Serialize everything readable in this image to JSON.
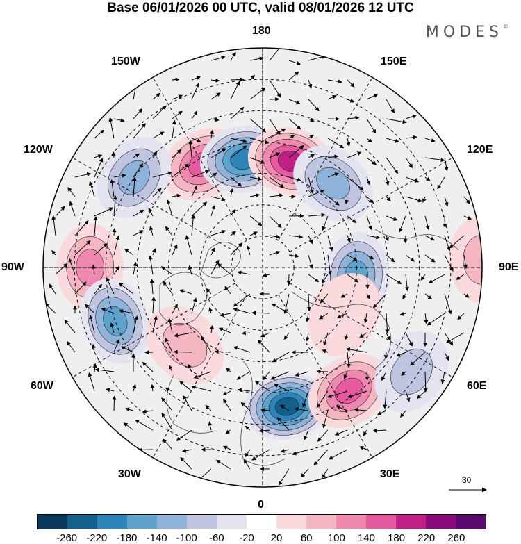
{
  "title": "Base 06/01/2026 00 UTC, valid 08/01/2026 12 UTC",
  "logo": "MODES",
  "logo_mark": "©",
  "longitude_labels": {
    "top": "180",
    "bottom": "0",
    "left": "90W",
    "right": "90E",
    "upper_left": "150W",
    "upper_right": "150E",
    "mid_upper_left": "120W",
    "mid_upper_right": "120E",
    "lower_left_60": "60W",
    "lower_right_60": "60E",
    "lower_left_30": "30W",
    "lower_right_30": "30E"
  },
  "reference_vector": {
    "value": "30"
  },
  "colorbar": {
    "ticks": [
      "-260",
      "-220",
      "-180",
      "-140",
      "-100",
      "-60",
      "-20",
      "20",
      "60",
      "100",
      "140",
      "180",
      "220",
      "260"
    ],
    "colors": [
      "#0b3a5c",
      "#14608c",
      "#2c84b8",
      "#5ea3cc",
      "#8fb2d8",
      "#bfc5e0",
      "#e4e3f0",
      "#ffffff",
      "#f9d9dc",
      "#f3b6c2",
      "#ef88ae",
      "#e65aa0",
      "#c02086",
      "#8a0a7e",
      "#5a0a6e"
    ]
  },
  "anomalies": [
    {
      "name": "high-150W",
      "lon": -150,
      "lat": 52,
      "value": 160
    },
    {
      "name": "low-170W",
      "lon": -170,
      "lat": 55,
      "value": -200
    },
    {
      "name": "high-165E",
      "lon": 165,
      "lat": 55,
      "value": 190
    },
    {
      "name": "low-140E",
      "lon": 140,
      "lat": 55,
      "value": -120
    },
    {
      "name": "low-125W",
      "lon": -125,
      "lat": 40,
      "value": -120
    },
    {
      "name": "high-90W",
      "lon": -90,
      "lat": 35,
      "value": 110
    },
    {
      "name": "low-70W",
      "lon": -70,
      "lat": 40,
      "value": -150
    },
    {
      "name": "high-55W",
      "lon": -45,
      "lat": 55,
      "value": 90
    },
    {
      "name": "low-10E",
      "lon": 10,
      "lat": 45,
      "value": -220
    },
    {
      "name": "high-40E",
      "lon": 35,
      "lat": 42,
      "value": 150
    },
    {
      "name": "low-85E",
      "lon": 85,
      "lat": 60,
      "value": -140
    },
    {
      "name": "high-70E",
      "lon": 60,
      "lat": 60,
      "value": 40
    },
    {
      "name": "low-60E",
      "lon": 55,
      "lat": 32,
      "value": -70
    },
    {
      "name": "high-95E",
      "lon": 92,
      "lat": 20,
      "value": 60
    }
  ]
}
